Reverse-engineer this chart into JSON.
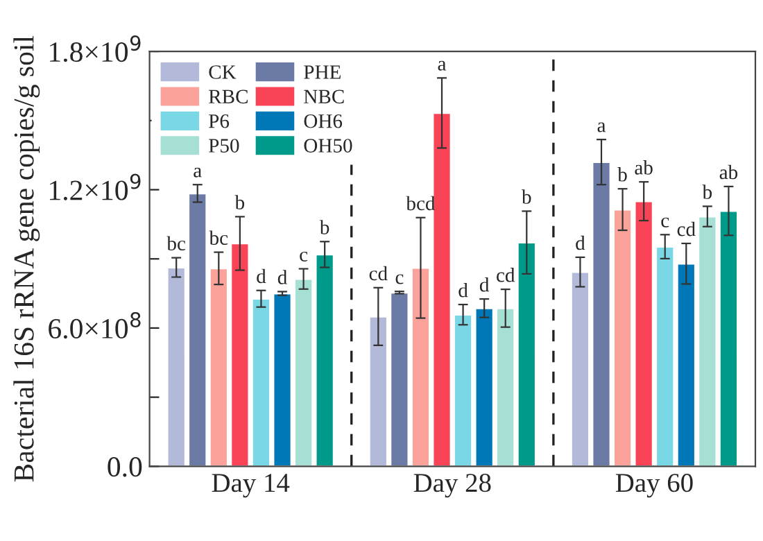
{
  "chart_data": {
    "type": "bar",
    "ylabel": "Bacterial 16S rRNA gene copies/g soil",
    "categories": [
      "Day 14",
      "Day 28",
      "Day 60"
    ],
    "series": [
      {
        "name": "CK",
        "color": "#b3b9d8",
        "values": [
          863000000,
          650000000,
          843000000
        ],
        "errors": [
          42000000,
          125000000,
          64000000
        ],
        "value_labels": [
          "bc",
          "cd",
          "d"
        ]
      },
      {
        "name": "PHE",
        "color": "#6c7aa6",
        "values": [
          1184000000,
          754000000,
          1320000000
        ],
        "errors": [
          38000000,
          5000000,
          98000000
        ],
        "value_labels": [
          "a",
          "c",
          "a"
        ]
      },
      {
        "name": "RBC",
        "color": "#fba39a",
        "values": [
          859000000,
          861000000,
          1114000000
        ],
        "errors": [
          70000000,
          218000000,
          90000000
        ],
        "value_labels": [
          "bc",
          "bcd",
          "b"
        ]
      },
      {
        "name": "NBC",
        "color": "#f94357",
        "values": [
          967000000,
          1533000000,
          1150000000
        ],
        "errors": [
          116000000,
          152000000,
          84000000
        ],
        "value_labels": [
          "b",
          "a",
          "ab"
        ]
      },
      {
        "name": "P6",
        "color": "#7ad8e6",
        "values": [
          727000000,
          658000000,
          953000000
        ],
        "errors": [
          36000000,
          44000000,
          52000000
        ],
        "value_labels": [
          "d",
          "d",
          "c"
        ]
      },
      {
        "name": "OH6",
        "color": "#0077b6",
        "values": [
          750000000,
          686000000,
          879000000
        ],
        "errors": [
          8000000,
          40000000,
          88000000
        ],
        "value_labels": [
          "d",
          "d",
          "cd"
        ]
      },
      {
        "name": "P50",
        "color": "#a6dfd3",
        "values": [
          813000000,
          686000000,
          1084000000
        ],
        "errors": [
          44000000,
          82000000,
          44000000
        ],
        "value_labels": [
          "c",
          "cd",
          "b"
        ]
      },
      {
        "name": "OH50",
        "color": "#009a8a",
        "values": [
          919000000,
          971000000,
          1108000000
        ],
        "errors": [
          56000000,
          136000000,
          106000000
        ],
        "value_labels": [
          "b",
          "b",
          "ab"
        ]
      }
    ],
    "ylim": [
      0,
      1800000000
    ],
    "yticks": [
      {
        "value": 0,
        "label": "0.0"
      },
      {
        "value": 300000000,
        "label": null
      },
      {
        "value": 600000000,
        "label": "6.0×10$^{8}$"
      },
      {
        "value": 900000000,
        "label": null
      },
      {
        "value": 1200000000,
        "label": "1.2×10$^{9}$"
      },
      {
        "value": 1500000000,
        "label": null
      },
      {
        "value": 1800000000,
        "label": "1.8×10$^{9}$"
      }
    ],
    "grid": false,
    "legend": "top left"
  }
}
